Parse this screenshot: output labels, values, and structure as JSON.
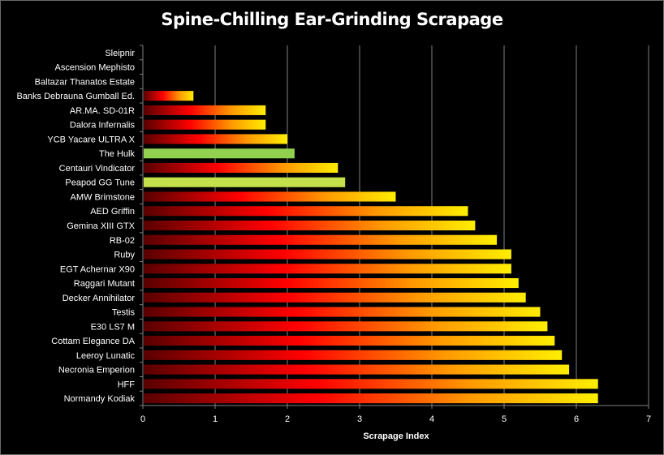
{
  "chart_data": {
    "type": "bar",
    "orientation": "horizontal",
    "title": "Spine-Chilling Ear-Grinding Scrapage",
    "xlabel": "Scrapage Index",
    "ylabel": "",
    "xlim": [
      0,
      7
    ],
    "xticks": [
      "0",
      "1",
      "2",
      "3",
      "4",
      "5",
      "6",
      "7"
    ],
    "grid": true,
    "legend": "none",
    "categories": [
      "Sleipnir",
      "Ascension Mephisto",
      "Baltazar Thanatos Estate",
      "Banks Debrauna Gumball Ed.",
      "AR.MA. SD-01R",
      "Dalora Infernalis",
      "YCB Yacare ULTRA X",
      "The Hulk",
      "Centauri Vindicator",
      "Peapod GG Tune",
      "AMW Brimstone",
      "AED Griffin",
      "Gemina XIII GTX",
      "RB-02",
      "Ruby",
      "EGT Achernar X90",
      "Raggari Mutant",
      "Decker Annihilator",
      "Testis",
      "E30 LS7 M",
      "Cottam Elegance DA",
      "Leeroy Lunatic",
      "Necronia Emperion",
      "HFF",
      "Normandy Kodiak"
    ],
    "values": [
      0,
      0,
      0,
      0.7,
      1.7,
      1.7,
      2.0,
      2.1,
      2.7,
      2.8,
      3.5,
      4.5,
      4.6,
      4.9,
      5.1,
      5.1,
      5.2,
      5.3,
      5.5,
      5.6,
      5.7,
      5.8,
      5.9,
      6.3,
      6.3
    ],
    "highlight_colors": {
      "The Hulk": "#92d050",
      "Peapod GG Tune": "#c4e04a"
    },
    "gradient_colors": [
      "#5a0000",
      "#ff0000",
      "#ff9900",
      "#ffee00"
    ]
  }
}
